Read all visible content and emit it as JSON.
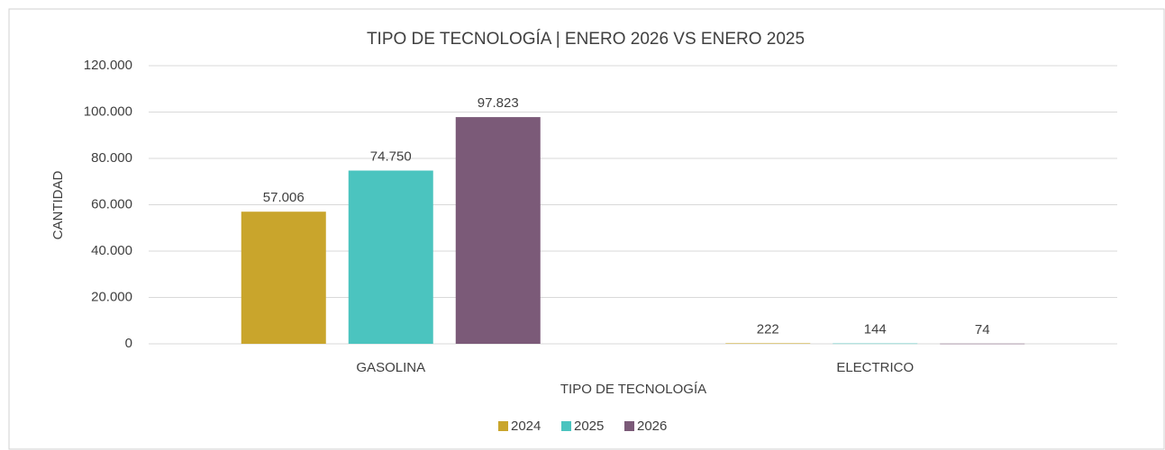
{
  "chart_data": {
    "type": "bar",
    "title": "TIPO DE TECNOLOGÍA | ENERO 2026 VS ENERO 2025",
    "x_label": "TIPO DE TECNOLOGÍA",
    "y_label": "CANTIDAD",
    "categories": [
      "GASOLINA",
      "ELECTRICO"
    ],
    "series": [
      {
        "name": "2024",
        "color": "#c9a52c",
        "values": [
          57006,
          222
        ],
        "value_labels": [
          "57.006",
          "222"
        ]
      },
      {
        "name": "2025",
        "color": "#4bc4bf",
        "values": [
          74750,
          144
        ],
        "value_labels": [
          "74.750",
          "144"
        ]
      },
      {
        "name": "2026",
        "color": "#7b5a78",
        "values": [
          97823,
          74
        ],
        "value_labels": [
          "97.823",
          "74"
        ]
      }
    ],
    "ylim": [
      0,
      120000
    ],
    "yticks": [
      0,
      {
        "value": 20000,
        "label": "20.000"
      },
      {
        "value": 40000,
        "label": "40.000"
      },
      {
        "value": 60000,
        "label": "60.000"
      },
      {
        "value": 80000,
        "label": "80.000"
      },
      {
        "value": 100000,
        "label": "100.000"
      },
      {
        "value": 120000,
        "label": "120.000"
      }
    ],
    "grid": true,
    "legend": "bottom"
  }
}
